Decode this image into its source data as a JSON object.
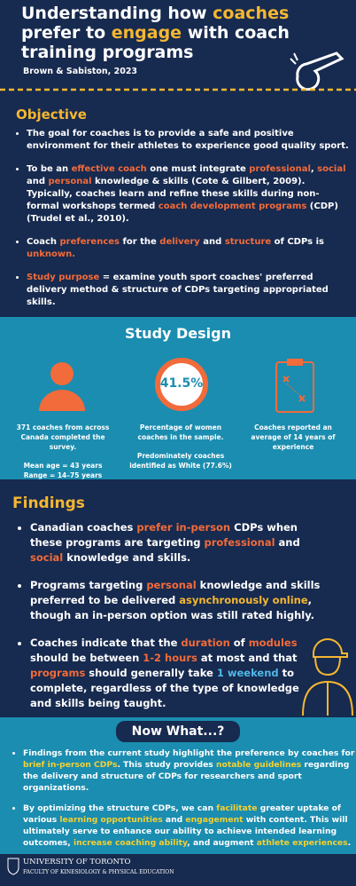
{
  "header": {
    "title": [
      {
        "text": "Understanding how "
      },
      {
        "text": "coaches",
        "color": "#f5b731"
      },
      {
        "text": " prefer to "
      },
      {
        "text": "engage",
        "color": "#f5b731"
      },
      {
        "text": " with coach training programs"
      }
    ],
    "citation": "Brown & Sabiston, 2023"
  },
  "objective": {
    "heading": "Objective",
    "bullets": [
      [
        {
          "text": "The goal for coaches is to provide a safe and positive environment for their athletes to experience good quality sport."
        }
      ],
      [
        {
          "text": "To be an "
        },
        {
          "text": "effective coach",
          "color": "#f26b3a"
        },
        {
          "text": " one must integrate "
        },
        {
          "text": "professional",
          "color": "#f26b3a"
        },
        {
          "text": ", "
        },
        {
          "text": "social",
          "color": "#f26b3a"
        },
        {
          "text": " and "
        },
        {
          "text": "personal",
          "color": "#f26b3a"
        },
        {
          "text": " knowledge & skills (Cote & Gilbert, 2009). Typically, coaches learn and refine these skills during non-formal workshops termed "
        },
        {
          "text": "coach development programs",
          "color": "#f26b3a"
        },
        {
          "text": " (CDP) (Trudel et al., 2010)."
        }
      ],
      [
        {
          "text": "Coach "
        },
        {
          "text": "preferences",
          "color": "#f26b3a"
        },
        {
          "text": " for the "
        },
        {
          "text": "delivery",
          "color": "#f26b3a"
        },
        {
          "text": " and "
        },
        {
          "text": "structure",
          "color": "#f26b3a"
        },
        {
          "text": " of CDPs is "
        },
        {
          "text": "unknown.",
          "color": "#f26b3a"
        }
      ],
      [
        {
          "text": "Study purpose",
          "color": "#f26b3a"
        },
        {
          "text": " = examine youth sport coaches' preferred delivery method & structure of CDPs targeting appropriated skills."
        }
      ]
    ]
  },
  "study_design": {
    "heading": "Study Design",
    "stat": "41.5%",
    "columns": [
      [
        "371 coaches from across Canada completed the survey.",
        "Mean age = 43 years",
        "Range = 14–75 years"
      ],
      [
        "Percentage of women coaches in the sample.",
        "Predominately coaches identified as White (77.6%)"
      ],
      [
        "Coaches reported an average of 14 years of experience"
      ]
    ]
  },
  "findings": {
    "heading": "Findings",
    "bullets": [
      [
        {
          "text": "Canadian coaches "
        },
        {
          "text": "prefer in-person",
          "color": "#f26b3a"
        },
        {
          "text": " CDPs when these programs are targeting "
        },
        {
          "text": "professional",
          "color": "#f26b3a"
        },
        {
          "text": " and "
        },
        {
          "text": "social",
          "color": "#f26b3a"
        },
        {
          "text": " knowledge and skills."
        }
      ],
      [
        {
          "text": "Programs targeting "
        },
        {
          "text": "personal",
          "color": "#f26b3a"
        },
        {
          "text": " knowledge and skills preferred to be delivered "
        },
        {
          "text": "asynchronously online",
          "color": "#f5b731"
        },
        {
          "text": ", though an in-person option was still rated highly."
        }
      ],
      [
        {
          "text": "Coaches indicate that the "
        },
        {
          "text": "duration",
          "color": "#f26b3a"
        },
        {
          "text": " of "
        },
        {
          "text": "modules",
          "color": "#f26b3a"
        },
        {
          "text": " should be between "
        },
        {
          "text": "1-2 hours",
          "color": "#f26b3a"
        },
        {
          "text": " at most and that "
        },
        {
          "text": "programs",
          "color": "#f26b3a"
        },
        {
          "text": " should generally take "
        },
        {
          "text": "1 weekend",
          "color": "#4fb8e8"
        },
        {
          "text": " to complete, regardless of the type of knowledge and skills being taught."
        }
      ]
    ]
  },
  "now_what": {
    "heading": "Now What...?",
    "bullets": [
      [
        {
          "text": "Findings from the current study highlight the preference by coaches for "
        },
        {
          "text": "brief in-person CDPs",
          "color": "#f5d031"
        },
        {
          "text": ". This study provides "
        },
        {
          "text": "notable guidelines",
          "color": "#f5d031"
        },
        {
          "text": " regarding the delivery and structure of CDPs for researchers and sport organizations."
        }
      ],
      [
        {
          "text": "By optimizing the structure CDPs, we can "
        },
        {
          "text": "facilitate",
          "color": "#f5d031"
        },
        {
          "text": " greater uptake of various "
        },
        {
          "text": "learning opportunities",
          "color": "#f5d031"
        },
        {
          "text": " and "
        },
        {
          "text": "engagement",
          "color": "#f5d031"
        },
        {
          "text": " with content. This will ultimately serve to enhance our ability to achieve intended learning outcomes, "
        },
        {
          "text": "increase coaching ability",
          "color": "#f5d031"
        },
        {
          "text": ", and augment "
        },
        {
          "text": "athlete experiences",
          "color": "#f5d031"
        },
        {
          "text": "."
        }
      ]
    ]
  },
  "footer": {
    "university": "UNIVERSITY OF TORONTO",
    "faculty": "FACULTY OF KINESIOLOGY & PHYSICAL EDUCATION"
  }
}
